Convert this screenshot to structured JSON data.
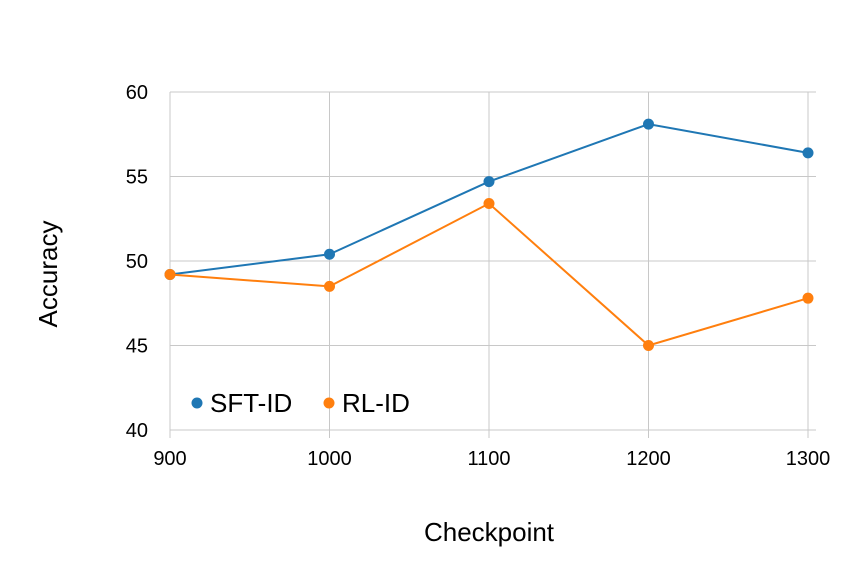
{
  "chart_data": {
    "type": "line",
    "xlabel": "Checkpoint",
    "ylabel": "Accuracy",
    "x": [
      900,
      1000,
      1100,
      1200,
      1300
    ],
    "x_tick_labels": [
      "900",
      "1000",
      "1100",
      "1200",
      "1300"
    ],
    "y_tick_labels": [
      "40",
      "45",
      "50",
      "55",
      "60"
    ],
    "y_ticks": [
      40,
      45,
      50,
      55,
      60
    ],
    "ylim": [
      40,
      60
    ],
    "xlim": [
      900,
      1300
    ],
    "grid": true,
    "legend_position": "bottom-left",
    "series": [
      {
        "name": "SFT-ID",
        "color": "#1f77b4",
        "values": [
          49.2,
          50.4,
          54.7,
          58.1,
          56.4
        ]
      },
      {
        "name": "RL-ID",
        "color": "#ff7f0e",
        "values": [
          49.2,
          48.5,
          53.4,
          45.0,
          47.8
        ]
      }
    ]
  }
}
